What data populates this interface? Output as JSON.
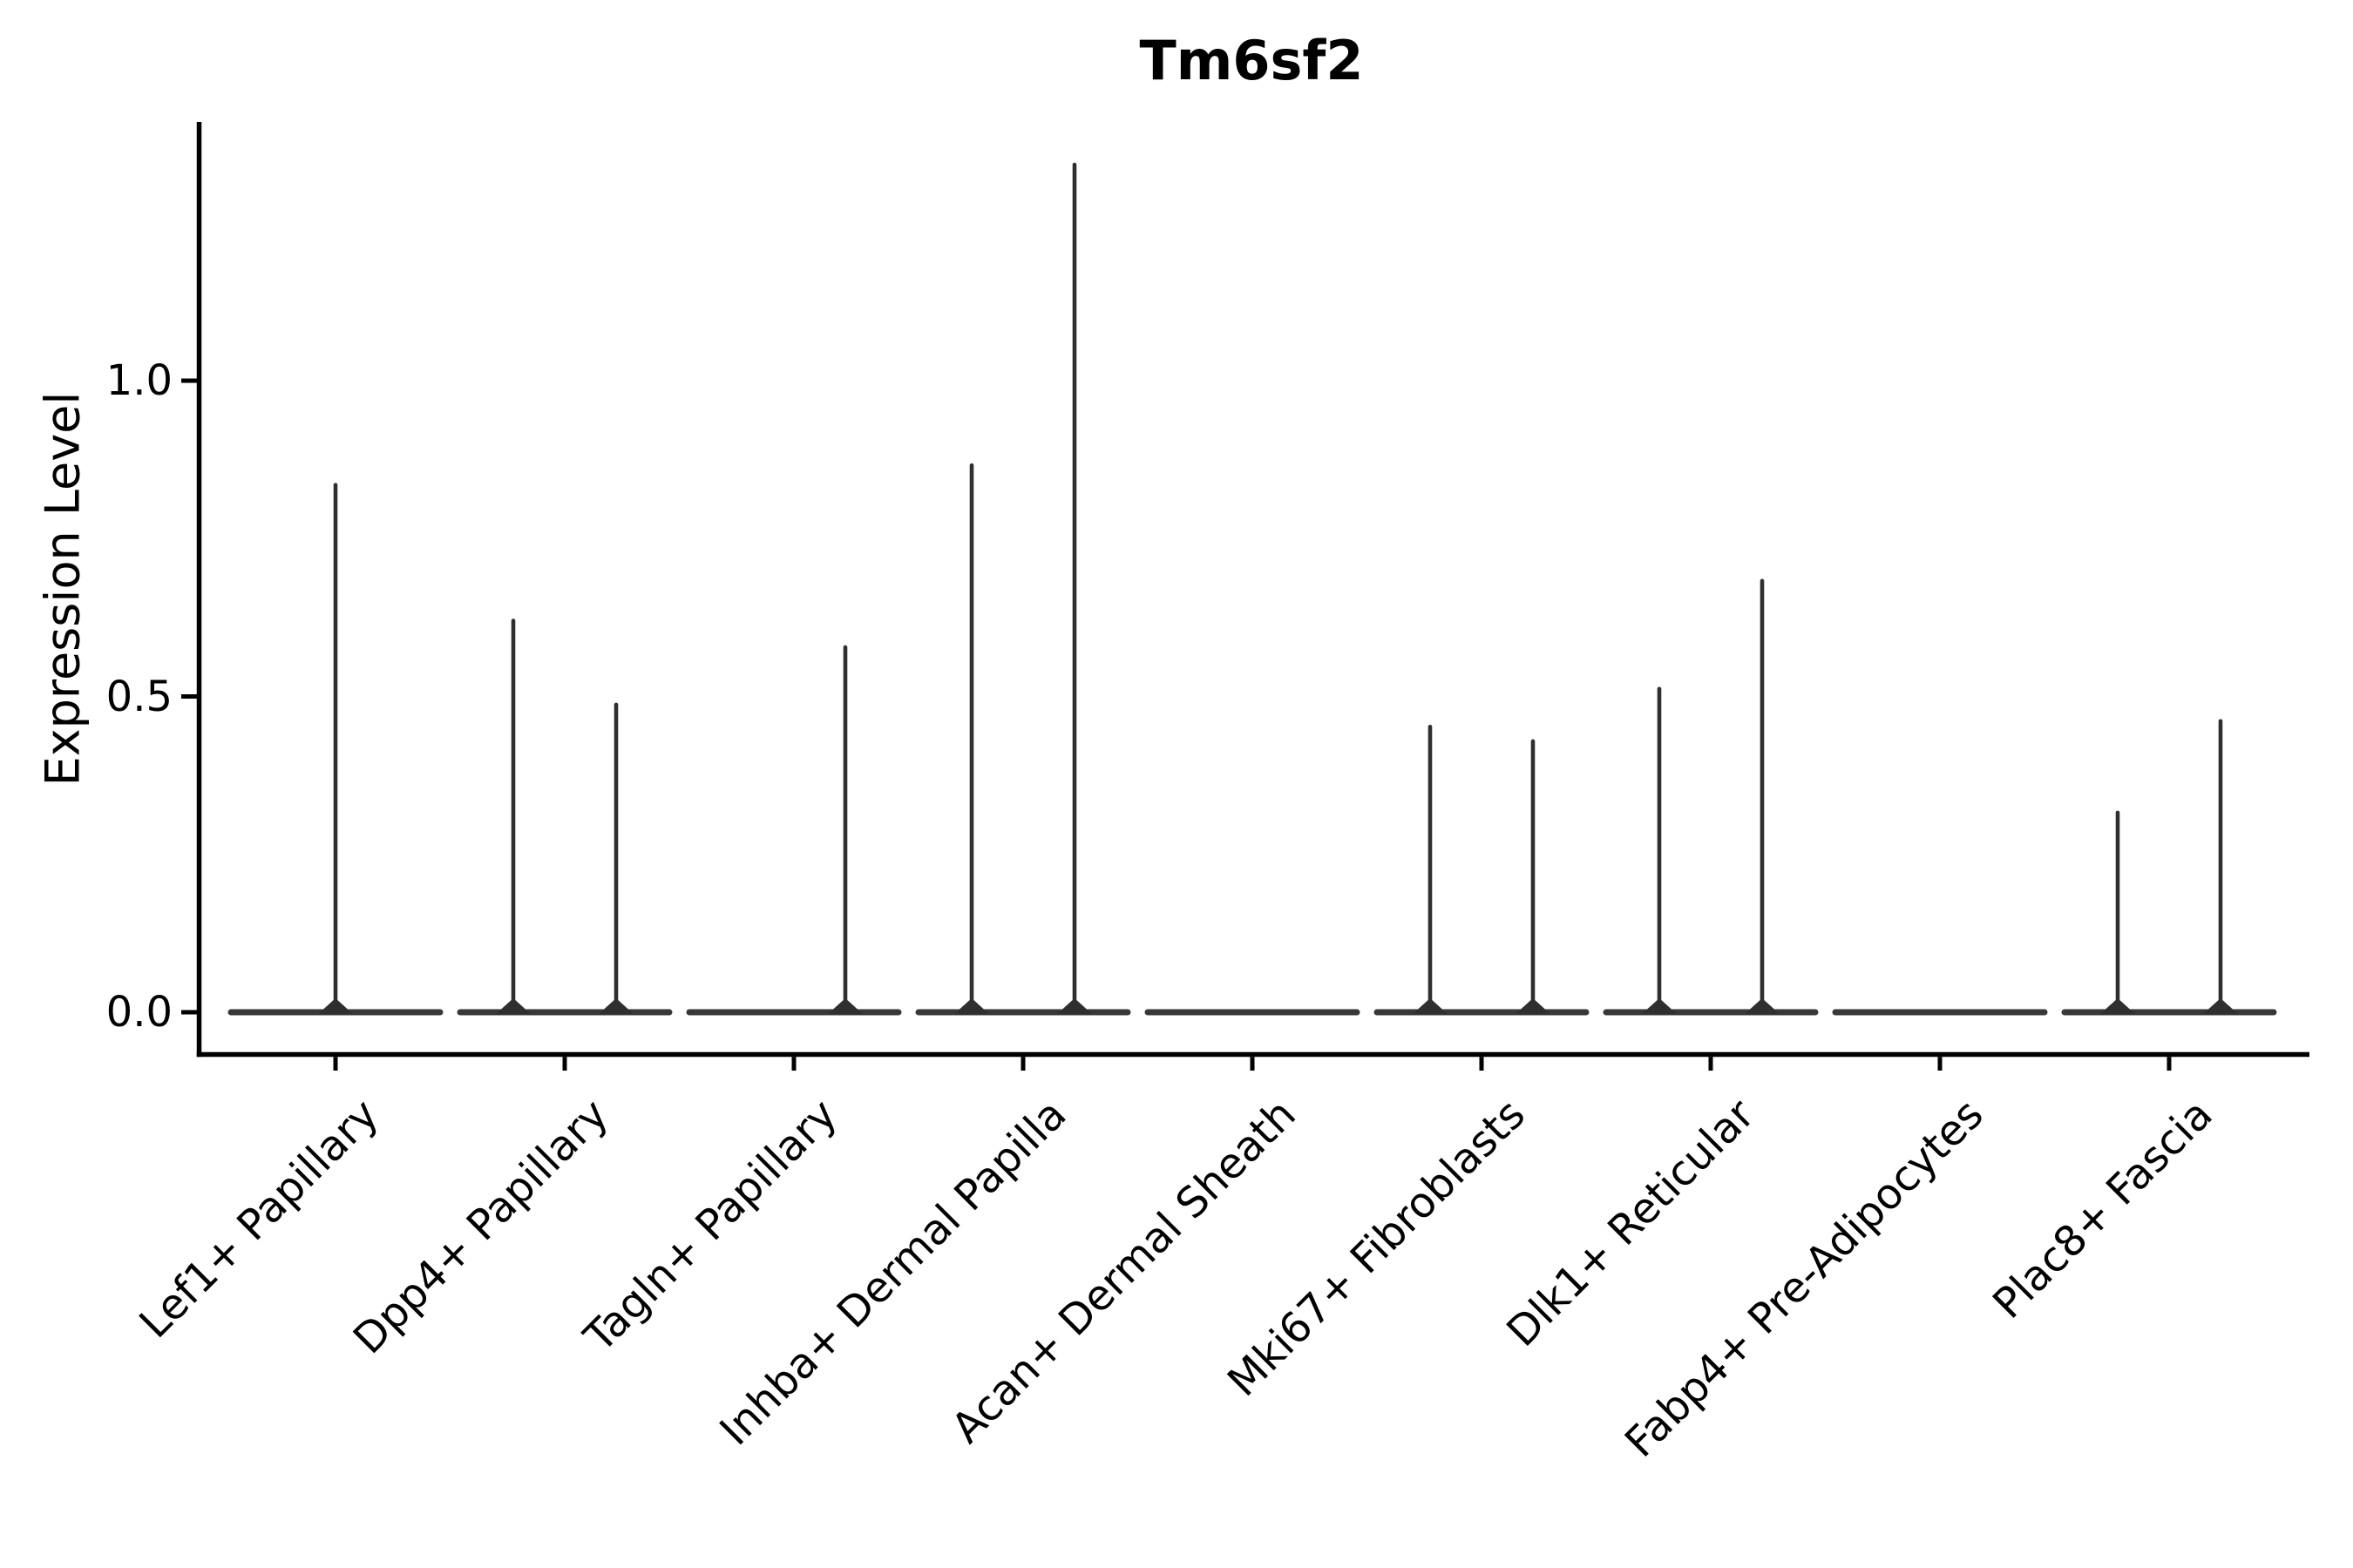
{
  "figure": {
    "title": "Tm6sf2"
  },
  "y_axis": {
    "label": "Expression Level",
    "tick_labels": [
      "0.0",
      "0.5",
      "1.0"
    ]
  },
  "colors": {
    "background": "#ffffff",
    "axis": "#000000",
    "text": "#000000",
    "violin_spike": "#2f2f2f",
    "violin_base": "#383838"
  },
  "chart_data": {
    "type": "violin",
    "title": "Tm6sf2",
    "xlabel": "",
    "ylabel": "Expression Level",
    "yticks": [
      0.0,
      0.5,
      1.0
    ],
    "ylim": [
      -0.07,
      1.41
    ],
    "grid": false,
    "legend": null,
    "categories": [
      "Lef1+ Papillary",
      "Dpp4+ Papillary",
      "Tagln+ Papillary",
      "Inhba+ Dermal Papilla",
      "Acan+ Dermal Sheath",
      "Mki67+ Fibroblasts",
      "Dlk1+ Reticular",
      "Fabp4+ Pre-Adipocytes",
      "Plac8+ Fascia"
    ],
    "violins": [
      {
        "category": "Lef1+ Papillary",
        "spikes": [
          {
            "side": "center",
            "max": 0.835
          }
        ]
      },
      {
        "category": "Dpp4+ Papillary",
        "spikes": [
          {
            "side": "left",
            "max": 0.62
          },
          {
            "side": "right",
            "max": 0.487
          }
        ]
      },
      {
        "category": "Tagln+ Papillary",
        "spikes": [
          {
            "side": "right",
            "max": 0.578
          }
        ]
      },
      {
        "category": "Inhba+ Dermal Papilla",
        "spikes": [
          {
            "side": "left",
            "max": 0.866
          },
          {
            "side": "right",
            "max": 1.342
          }
        ]
      },
      {
        "category": "Acan+ Dermal Sheath",
        "spikes": []
      },
      {
        "category": "Mki67+ Fibroblasts",
        "spikes": [
          {
            "side": "left",
            "max": 0.452
          },
          {
            "side": "right",
            "max": 0.429
          }
        ]
      },
      {
        "category": "Dlk1+ Reticular",
        "spikes": [
          {
            "side": "left",
            "max": 0.512
          },
          {
            "side": "right",
            "max": 0.683
          }
        ]
      },
      {
        "category": "Fabp4+ Pre-Adipocytes",
        "spikes": []
      },
      {
        "category": "Plac8+ Fascia",
        "spikes": [
          {
            "side": "left",
            "max": 0.316
          },
          {
            "side": "right",
            "max": 0.461
          }
        ]
      }
    ]
  }
}
